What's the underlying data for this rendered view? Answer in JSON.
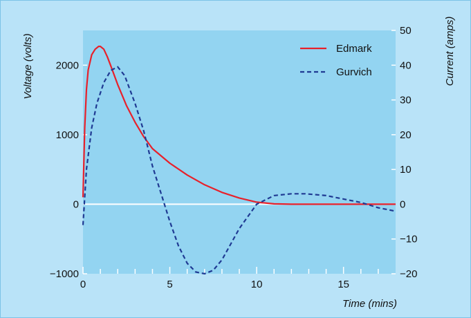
{
  "chart_data": {
    "type": "line",
    "title": "",
    "xlabel": "Time (mins)",
    "ylabel_left": "Voltage (volts)",
    "ylabel_right": "Current (amps)",
    "xlim": [
      0,
      18
    ],
    "ylim_left": [
      -1000,
      2500
    ],
    "ylim_right": [
      -20,
      50
    ],
    "x_ticks": [
      0,
      5,
      10,
      15
    ],
    "x_tick_labels": [
      "0",
      "5",
      "10",
      "15"
    ],
    "y_left_ticks": [
      -1000,
      0,
      1000,
      2000
    ],
    "y_left_tick_labels": [
      "−1000",
      "0",
      "1000",
      "2000"
    ],
    "y_right_ticks": [
      -20,
      -10,
      0,
      10,
      20,
      30,
      40,
      50
    ],
    "y_right_tick_labels": [
      "−20",
      "−10",
      "0",
      "10",
      "20",
      "30",
      "40",
      "50"
    ],
    "legend_position": "top-right",
    "grid": false,
    "colors": {
      "frame_background": "#b9e3f8",
      "plot_background": "#93d4f1",
      "zero_line": "#ffffff",
      "edmark": "#e8202a",
      "gurvich": "#1f3a93"
    },
    "series": [
      {
        "name": "Edmark",
        "axis": "left",
        "style": "solid",
        "x": [
          0,
          0.1,
          0.2,
          0.3,
          0.5,
          0.7,
          0.9,
          1.0,
          1.2,
          1.4,
          1.6,
          2.0,
          2.5,
          3.0,
          3.5,
          4.0,
          5.0,
          6.0,
          7.0,
          8.0,
          9.0,
          10.0,
          11.0,
          12.0,
          14.0,
          16.0,
          18.0
        ],
        "y": [
          100,
          1100,
          1650,
          1930,
          2150,
          2230,
          2270,
          2270,
          2230,
          2120,
          1990,
          1720,
          1420,
          1180,
          970,
          800,
          590,
          420,
          280,
          170,
          90,
          30,
          5,
          0,
          0,
          0,
          0
        ]
      },
      {
        "name": "Gurvich",
        "axis": "right",
        "style": "dashed",
        "x": [
          0,
          0.2,
          0.5,
          0.8,
          1.2,
          1.6,
          2.0,
          2.4,
          3.0,
          3.5,
          4.0,
          4.5,
          5.0,
          5.5,
          6.0,
          6.5,
          7.0,
          7.5,
          8.0,
          9.0,
          10.0,
          11.0,
          12.0,
          12.8,
          14.0,
          15.0,
          16.0,
          17.0,
          18.0
        ],
        "y": [
          -6,
          10,
          22,
          29,
          35,
          38.5,
          39.5,
          37,
          29,
          21,
          11,
          3,
          -5,
          -12,
          -17,
          -19.5,
          -20,
          -19,
          -16,
          -7,
          0,
          2.5,
          3,
          3,
          2.5,
          1.5,
          0.5,
          -1,
          -2
        ]
      }
    ]
  }
}
